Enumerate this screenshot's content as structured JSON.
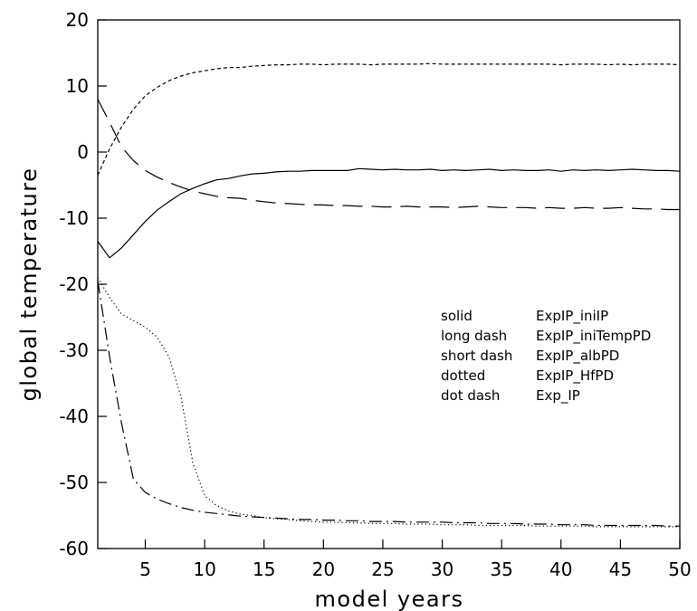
{
  "chart_data": {
    "type": "line",
    "title": "",
    "xlabel": "model years",
    "ylabel": "global temperature",
    "xlim": [
      1,
      50
    ],
    "ylim": [
      -60,
      20
    ],
    "x_ticks": [
      5,
      10,
      15,
      20,
      25,
      30,
      35,
      40,
      45,
      50
    ],
    "y_ticks": [
      20,
      10,
      0,
      -10,
      -20,
      -30,
      -40,
      -50,
      -60
    ],
    "grid": false,
    "legend_position": "center-right",
    "legend": [
      {
        "style": "solid",
        "label": "ExpIP_iniIP"
      },
      {
        "style": "long dash",
        "label": "ExpIP_iniTempPD"
      },
      {
        "style": "short dash",
        "label": "ExpIP_albPD"
      },
      {
        "style": "dotted",
        "label": "ExpIP_HfPD"
      },
      {
        "style": "dot dash",
        "label": "Exp_IP"
      }
    ],
    "series": [
      {
        "line_style": "solid",
        "x": [
          1,
          2,
          3,
          4,
          5,
          6,
          7,
          8,
          9,
          10,
          11,
          12,
          13,
          14,
          15,
          16,
          17,
          18,
          19,
          20,
          21,
          22,
          23,
          24,
          25,
          26,
          27,
          28,
          29,
          30,
          31,
          32,
          33,
          34,
          35,
          36,
          37,
          38,
          39,
          40,
          41,
          42,
          43,
          44,
          45,
          46,
          47,
          48,
          49,
          50
        ],
        "y": [
          -13.5,
          -16,
          -14.5,
          -12.5,
          -10.5,
          -8.8,
          -7.5,
          -6.3,
          -5.5,
          -4.8,
          -4.2,
          -4,
          -3.6,
          -3.3,
          -3.2,
          -3,
          -2.9,
          -2.9,
          -2.8,
          -2.8,
          -2.8,
          -2.8,
          -2.5,
          -2.6,
          -2.7,
          -2.6,
          -2.7,
          -2.7,
          -2.6,
          -2.8,
          -2.7,
          -2.8,
          -2.7,
          -2.6,
          -2.8,
          -2.7,
          -2.8,
          -2.8,
          -2.7,
          -2.9,
          -2.7,
          -2.8,
          -2.7,
          -2.8,
          -2.7,
          -2.6,
          -2.7,
          -2.8,
          -2.8,
          -2.9
        ]
      },
      {
        "line_style": "long dash",
        "x": [
          1,
          2,
          3,
          4,
          5,
          6,
          7,
          8,
          9,
          10,
          11,
          12,
          13,
          14,
          15,
          16,
          17,
          18,
          19,
          20,
          21,
          22,
          23,
          24,
          25,
          26,
          27,
          28,
          29,
          30,
          31,
          32,
          33,
          34,
          35,
          36,
          37,
          38,
          39,
          40,
          41,
          42,
          43,
          44,
          45,
          46,
          47,
          48,
          49,
          50
        ],
        "y": [
          8,
          4.5,
          0.8,
          -1.3,
          -2.8,
          -3.8,
          -4.6,
          -5.3,
          -5.9,
          -6.3,
          -6.7,
          -6.9,
          -7,
          -7.3,
          -7.5,
          -7.7,
          -7.8,
          -7.9,
          -8,
          -8,
          -8.1,
          -8.1,
          -8.2,
          -8.2,
          -8.3,
          -8.3,
          -8.2,
          -8.3,
          -8.3,
          -8.3,
          -8.4,
          -8.3,
          -8.2,
          -8.3,
          -8.4,
          -8.4,
          -8.4,
          -8.5,
          -8.4,
          -8.5,
          -8.5,
          -8.4,
          -8.5,
          -8.5,
          -8.4,
          -8.5,
          -8.6,
          -8.6,
          -8.7,
          -8.7
        ]
      },
      {
        "line_style": "short dash",
        "x": [
          1,
          2,
          3,
          4,
          5,
          6,
          7,
          8,
          9,
          10,
          11,
          12,
          13,
          14,
          15,
          16,
          17,
          18,
          19,
          20,
          21,
          22,
          23,
          24,
          25,
          26,
          27,
          28,
          29,
          30,
          31,
          32,
          33,
          34,
          35,
          36,
          37,
          38,
          39,
          40,
          41,
          42,
          43,
          44,
          45,
          46,
          47,
          48,
          49,
          50
        ],
        "y": [
          -3.5,
          0.5,
          3.8,
          6.5,
          8.5,
          9.8,
          10.8,
          11.5,
          12,
          12.3,
          12.6,
          12.8,
          12.8,
          13,
          13.1,
          13.2,
          13.2,
          13.3,
          13.3,
          13.2,
          13.3,
          13.3,
          13.3,
          13.2,
          13.3,
          13.3,
          13.3,
          13.3,
          13.4,
          13.3,
          13.3,
          13.3,
          13.3,
          13.3,
          13.3,
          13.3,
          13.3,
          13.3,
          13.3,
          13.2,
          13.3,
          13.3,
          13.3,
          13.2,
          13.3,
          13.2,
          13.3,
          13.3,
          13.3,
          13.2
        ]
      },
      {
        "line_style": "dotted",
        "x": [
          1,
          2,
          3,
          4,
          5,
          6,
          7,
          8,
          9,
          10,
          11,
          12,
          13,
          14,
          15,
          16,
          17,
          18,
          19,
          20,
          21,
          22,
          23,
          24,
          25,
          26,
          27,
          28,
          29,
          30,
          31,
          32,
          33,
          34,
          35,
          36,
          37,
          38,
          39,
          40,
          41,
          42,
          43,
          44,
          45,
          46,
          47,
          48,
          49,
          50
        ],
        "y": [
          -19,
          -22,
          -24.5,
          -25.5,
          -26.5,
          -28,
          -31,
          -37,
          -47,
          -52,
          -53.5,
          -54.3,
          -54.8,
          -55,
          -55.3,
          -55.5,
          -55.6,
          -55.8,
          -55.9,
          -56,
          -56,
          -56.1,
          -56.1,
          -56.2,
          -56.2,
          -56.2,
          -56.3,
          -56.3,
          -56.3,
          -56.4,
          -56.4,
          -56.4,
          -56.5,
          -56.5,
          -56.5,
          -56.5,
          -56.5,
          -56.6,
          -56.6,
          -56.6,
          -56.6,
          -56.6,
          -56.7,
          -56.7,
          -56.7,
          -56.7,
          -56.7,
          -56.7,
          -56.7,
          -56.7
        ]
      },
      {
        "line_style": "dot dash",
        "x": [
          1,
          2,
          3,
          4,
          5,
          6,
          7,
          8,
          9,
          10,
          11,
          12,
          13,
          14,
          15,
          16,
          17,
          18,
          19,
          20,
          21,
          22,
          23,
          24,
          25,
          26,
          27,
          28,
          29,
          30,
          31,
          32,
          33,
          34,
          35,
          36,
          37,
          38,
          39,
          40,
          41,
          42,
          43,
          44,
          45,
          46,
          47,
          48,
          49,
          50
        ],
        "y": [
          -19.5,
          -31,
          -41,
          -49.5,
          -51.5,
          -52.5,
          -53.2,
          -53.8,
          -54.2,
          -54.5,
          -54.7,
          -54.9,
          -55.1,
          -55.2,
          -55.3,
          -55.4,
          -55.5,
          -55.6,
          -55.6,
          -55.7,
          -55.7,
          -55.8,
          -55.8,
          -55.9,
          -55.9,
          -55.9,
          -56,
          -56,
          -56,
          -56,
          -56.1,
          -56.1,
          -56.1,
          -56.2,
          -56.2,
          -56.2,
          -56.3,
          -56.3,
          -56.3,
          -56.4,
          -56.4,
          -56.4,
          -56.5,
          -56.5,
          -56.5,
          -56.5,
          -56.5,
          -56.5,
          -56.6,
          -56.6
        ]
      }
    ]
  }
}
